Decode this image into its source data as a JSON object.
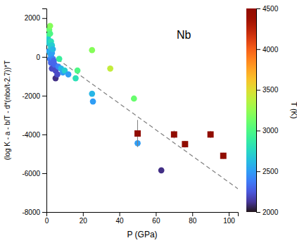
{
  "chart_data": {
    "type": "scatter",
    "title": "Nb",
    "xlabel": "P (GPa)",
    "ylabel": "(log K - a - b/T - d*(nbo/t-2.7))*T",
    "xlim": [
      0,
      105
    ],
    "ylim": [
      -8000,
      2500
    ],
    "xticks": [
      0,
      20,
      40,
      60,
      80,
      100
    ],
    "yticks": [
      -8000,
      -6000,
      -4000,
      -2000,
      0,
      2000
    ],
    "grid": false,
    "colorbar_lim": [
      2000,
      4500
    ],
    "colorbar_ticks": [
      2000,
      2500,
      3000,
      3500,
      4000,
      4500
    ],
    "colorbar_label": "T (K)",
    "series": [
      {
        "type": "line",
        "line_style": "dashed",
        "color": "gray",
        "x": [
          0,
          105
        ],
        "values": [
          300,
          -6800
        ]
      },
      {
        "type": "scatter",
        "marker": "circle",
        "x": [
          1.0,
          1.0,
          1.5,
          1.5,
          1.5,
          2.0,
          2.0,
          2.0,
          2.0,
          2.5,
          2.5,
          2.5,
          2.5,
          3.0,
          3.0,
          3.0,
          3.0,
          3.5,
          3.5,
          4.0,
          4.5,
          5.0,
          5.0,
          6.0,
          6.5,
          7.0,
          8.0,
          9.0,
          10.0,
          12.0,
          16.0,
          17.0,
          25.0,
          25.0,
          25.5,
          35.0,
          48.0
        ],
        "values": [
          1100,
          900,
          1400,
          700,
          300,
          1600,
          1200,
          200,
          -100,
          800,
          500,
          100,
          -300,
          600,
          200,
          -200,
          -600,
          400,
          -100,
          -200,
          -400,
          -700,
          -1100,
          -900,
          -500,
          -100,
          -600,
          -800,
          -700,
          -900,
          -1100,
          -700,
          350,
          -1900,
          -2300,
          -600,
          -2150
        ],
        "temperature": [
          2900,
          2700,
          3100,
          2700,
          2500,
          3200,
          3000,
          2600,
          2400,
          2800,
          2700,
          2500,
          2300,
          2700,
          2500,
          2300,
          2200,
          2600,
          2400,
          2300,
          2300,
          2200,
          2100,
          2200,
          2400,
          2900,
          2600,
          2500,
          2700,
          2500,
          2800,
          3000,
          3200,
          2600,
          2500,
          3400,
          3100
        ]
      },
      {
        "type": "scatter",
        "marker": "circle",
        "x": [
          50,
          63
        ],
        "values": [
          -4450,
          -5850
        ],
        "temperature": [
          2500,
          2100
        ]
      },
      {
        "type": "scatter",
        "marker": "square",
        "x": [
          50,
          70,
          76,
          90,
          97
        ],
        "values": [
          -3950,
          -4000,
          -4500,
          -4000,
          -5100
        ],
        "yerr": [
          700,
          200,
          170,
          180,
          160
        ],
        "temperature": [
          4500,
          4500,
          4500,
          4500,
          4500
        ]
      }
    ]
  }
}
